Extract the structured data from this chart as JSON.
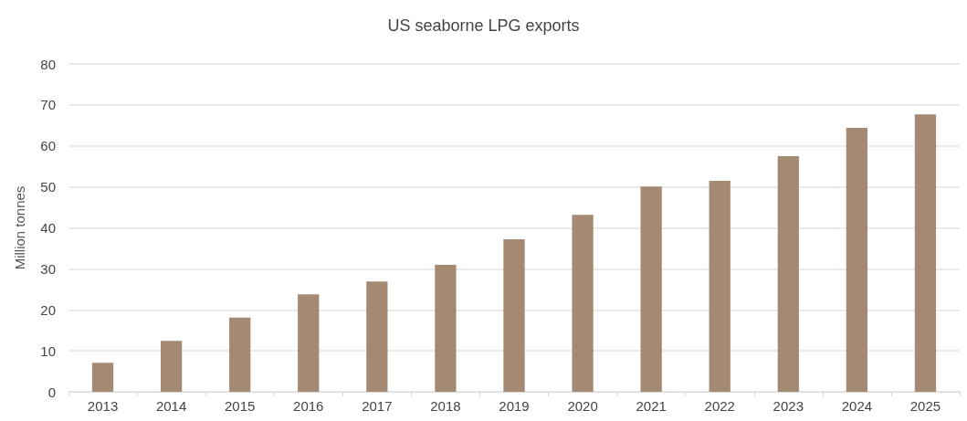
{
  "chart_data": {
    "type": "bar",
    "title": "US seaborne LPG exports",
    "ylabel": "Million tonnes",
    "categories": [
      "2013",
      "2014",
      "2015",
      "2016",
      "2017",
      "2018",
      "2019",
      "2020",
      "2021",
      "2022",
      "2023",
      "2024",
      "2025"
    ],
    "values": [
      7.1,
      12.4,
      18.1,
      23.8,
      26.9,
      31.0,
      37.2,
      43.2,
      50.1,
      51.5,
      57.5,
      64.4,
      67.7
    ],
    "color": "#a48a73",
    "ylim": [
      0,
      80
    ],
    "yticks": [
      0,
      10,
      20,
      30,
      40,
      50,
      60,
      70,
      80
    ],
    "grid": "y"
  }
}
